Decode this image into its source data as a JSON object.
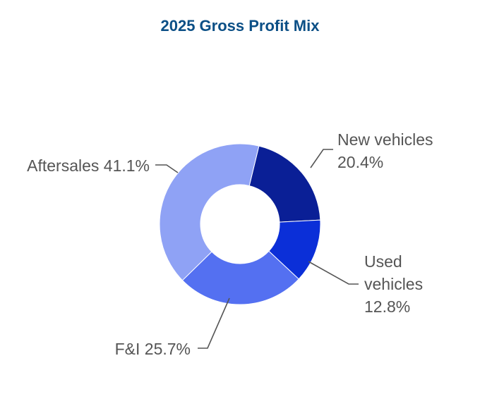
{
  "chart_data": {
    "type": "pie",
    "title": "2025 Gross Profit Mix",
    "donut": true,
    "slices": [
      {
        "key": "new",
        "label_lines": [
          "New vehicles",
          "20.4%"
        ],
        "category": "New vehicles",
        "value": 20.4,
        "color": "#0a1f96"
      },
      {
        "key": "used",
        "label_lines": [
          "Used",
          "vehicles",
          "12.8%"
        ],
        "category": "Used vehicles",
        "value": 12.8,
        "color": "#0b2fd8"
      },
      {
        "key": "fi",
        "label_lines": [
          "F&I 25.7%"
        ],
        "category": "F&I",
        "value": 25.7,
        "color": "#5470f1"
      },
      {
        "key": "aftersales",
        "label_lines": [
          "Aftersales 41.1%"
        ],
        "category": "Aftersales",
        "value": 41.1,
        "color": "#8fa2f5"
      }
    ]
  },
  "colors": {
    "title": "#0b4f86",
    "label_text": "#555555",
    "leader_line": "#555555"
  }
}
